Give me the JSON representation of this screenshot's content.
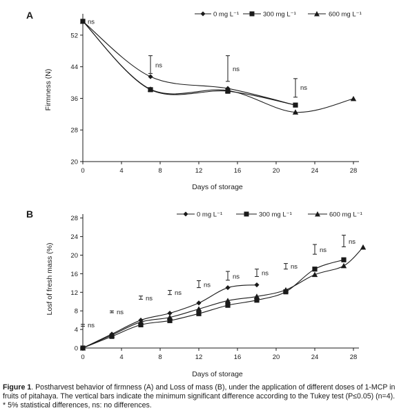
{
  "chart_data": [
    {
      "panel": "A",
      "type": "line",
      "xlabel": "Days of storage",
      "ylabel": "Firmness (N)",
      "xlim": [
        0,
        30
      ],
      "ylim": [
        20,
        56
      ],
      "x_ticks": [
        0,
        4,
        8,
        12,
        16,
        20,
        24,
        28
      ],
      "y_ticks": [
        20,
        28,
        36,
        44,
        52
      ],
      "legend_position": "top-right",
      "series": [
        {
          "name": "0 mg L⁻¹",
          "marker": "diamond",
          "x": [
            0,
            7,
            15,
            22
          ],
          "y": [
            55.5,
            41.5,
            38.5,
            34.3
          ]
        },
        {
          "name": "300 mg L⁻¹",
          "marker": "square",
          "x": [
            0,
            7,
            15,
            22
          ],
          "y": [
            55.5,
            38.2,
            37.8,
            34.3
          ]
        },
        {
          "name": "600 mg L⁻¹",
          "marker": "triangle",
          "x": [
            0,
            7,
            15,
            22,
            28
          ],
          "y": [
            55.5,
            38.3,
            38.0,
            32.5,
            35.9
          ]
        }
      ],
      "error_bars": [
        {
          "x": 7,
          "low": 42.3,
          "high": 46.8
        },
        {
          "x": 15,
          "low": 40.3,
          "high": 46.8
        },
        {
          "x": 22,
          "low": 36.3,
          "high": 41.0
        }
      ],
      "annotations": [
        {
          "x": 0,
          "y": 55.5,
          "text": "ns"
        },
        {
          "x": 7,
          "y": 44.5,
          "text": "ns"
        },
        {
          "x": 15,
          "y": 43.5,
          "text": "ns"
        },
        {
          "x": 22,
          "y": 38.8,
          "text": "ns"
        }
      ]
    },
    {
      "panel": "B",
      "type": "line",
      "xlabel": "Days of storage",
      "ylabel": "Losf of fresh mass (%)",
      "xlim": [
        0,
        30
      ],
      "ylim": [
        0,
        29
      ],
      "x_ticks": [
        0,
        4,
        8,
        12,
        16,
        20,
        24,
        28
      ],
      "y_ticks": [
        0,
        4,
        8,
        12,
        16,
        20,
        24,
        28
      ],
      "legend_position": "top-right",
      "series": [
        {
          "name": "0 mg L⁻¹",
          "marker": "diamond",
          "x": [
            0,
            3,
            6,
            9,
            12,
            15,
            18
          ],
          "y": [
            0,
            3.0,
            6.0,
            7.5,
            9.7,
            13.0,
            13.6
          ]
        },
        {
          "name": "300 mg L⁻¹",
          "marker": "square",
          "x": [
            0,
            3,
            6,
            9,
            12,
            15,
            18,
            21,
            24,
            27
          ],
          "y": [
            0,
            2.5,
            5.0,
            5.9,
            7.4,
            9.2,
            10.3,
            12.1,
            17.0,
            19.0
          ]
        },
        {
          "name": "600 mg L⁻¹",
          "marker": "triangle",
          "x": [
            0,
            3,
            6,
            9,
            12,
            15,
            18,
            21,
            24,
            27,
            29
          ],
          "y": [
            0,
            2.8,
            5.6,
            6.6,
            8.4,
            10.2,
            11.1,
            12.5,
            15.8,
            17.7,
            21.7
          ]
        }
      ],
      "error_bars": [
        {
          "x": 0,
          "low": 4.7,
          "high": 5.1
        },
        {
          "x": 3,
          "low": 7.6,
          "high": 8.0
        },
        {
          "x": 6,
          "low": 10.5,
          "high": 11.2
        },
        {
          "x": 9,
          "low": 11.5,
          "high": 12.4
        },
        {
          "x": 12,
          "low": 13.0,
          "high": 14.5
        },
        {
          "x": 15,
          "low": 14.6,
          "high": 16.5
        },
        {
          "x": 18,
          "low": 15.4,
          "high": 17.0
        },
        {
          "x": 21,
          "low": 17.0,
          "high": 18.2
        },
        {
          "x": 24,
          "low": 20.2,
          "high": 22.3
        },
        {
          "x": 27,
          "low": 21.8,
          "high": 24.3
        }
      ],
      "annotations": [
        {
          "x": 0,
          "y": 5.0,
          "text": "ns"
        },
        {
          "x": 3,
          "y": 7.8,
          "text": "ns"
        },
        {
          "x": 6,
          "y": 10.8,
          "text": "ns"
        },
        {
          "x": 9,
          "y": 12.0,
          "text": "ns"
        },
        {
          "x": 12,
          "y": 13.7,
          "text": "ns"
        },
        {
          "x": 15,
          "y": 15.5,
          "text": "ns"
        },
        {
          "x": 18,
          "y": 16.2,
          "text": "ns"
        },
        {
          "x": 21,
          "y": 17.6,
          "text": "ns"
        },
        {
          "x": 24,
          "y": 21.2,
          "text": "ns"
        },
        {
          "x": 27,
          "y": 23.0,
          "text": "ns"
        }
      ]
    }
  ],
  "caption": {
    "label": "Figure 1",
    "text": ". Postharvest behavior of firmness (A) and Loss of mass (B), under the application of different doses of 1-MCP in fruits of pitahaya.  The vertical bars indicate the minimum significant difference according to the Tukey test (P≤0.05) (n=4).",
    "footnote": "* 5% statistical differences, ns: no  differences."
  },
  "colors": {
    "ink": "#1a1a1a"
  }
}
